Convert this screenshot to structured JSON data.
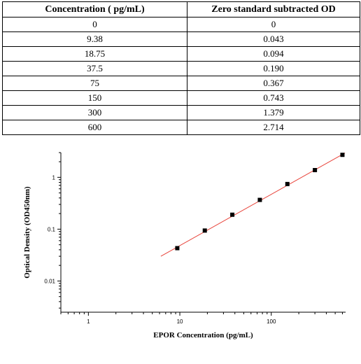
{
  "table": {
    "headers": [
      "Concentration ( pg/mL)",
      "Zero standard subtracted OD"
    ],
    "rows": [
      [
        "0",
        "0"
      ],
      [
        "9.38",
        "0.043"
      ],
      [
        "18.75",
        "0.094"
      ],
      [
        "37.5",
        "0.190"
      ],
      [
        "75",
        "0.367"
      ],
      [
        "150",
        "0.743"
      ],
      [
        "300",
        "1.379"
      ],
      [
        "600",
        "2.714"
      ]
    ]
  },
  "chart_data": {
    "type": "scatter",
    "xlabel": "EPOR Concentration (pg/mL)",
    "ylabel": "Optical Density (OD450nm)",
    "xscale": "log",
    "yscale": "log",
    "xlim": [
      0.5,
      650
    ],
    "ylim": [
      0.0025,
      3.0
    ],
    "x_ticks": [
      {
        "value": 1,
        "label": "1"
      },
      {
        "value": 10,
        "label": "10"
      },
      {
        "value": 100,
        "label": "100"
      }
    ],
    "y_ticks": [
      {
        "value": 0.01,
        "label": "0.01"
      },
      {
        "value": 0.1,
        "label": "0.1"
      },
      {
        "value": 1,
        "label": "1"
      }
    ],
    "points": {
      "x": [
        9.38,
        18.75,
        37.5,
        75,
        150,
        300,
        600
      ],
      "y": [
        0.043,
        0.094,
        0.19,
        0.367,
        0.743,
        1.379,
        2.714
      ]
    },
    "fit_line": {
      "x": [
        6.2,
        640
      ],
      "y": [
        0.03,
        2.95
      ]
    },
    "grid": false,
    "legend": "none",
    "colors": {
      "points": "#000000",
      "fit_line": "#e8433a",
      "axes": "#000000"
    }
  }
}
